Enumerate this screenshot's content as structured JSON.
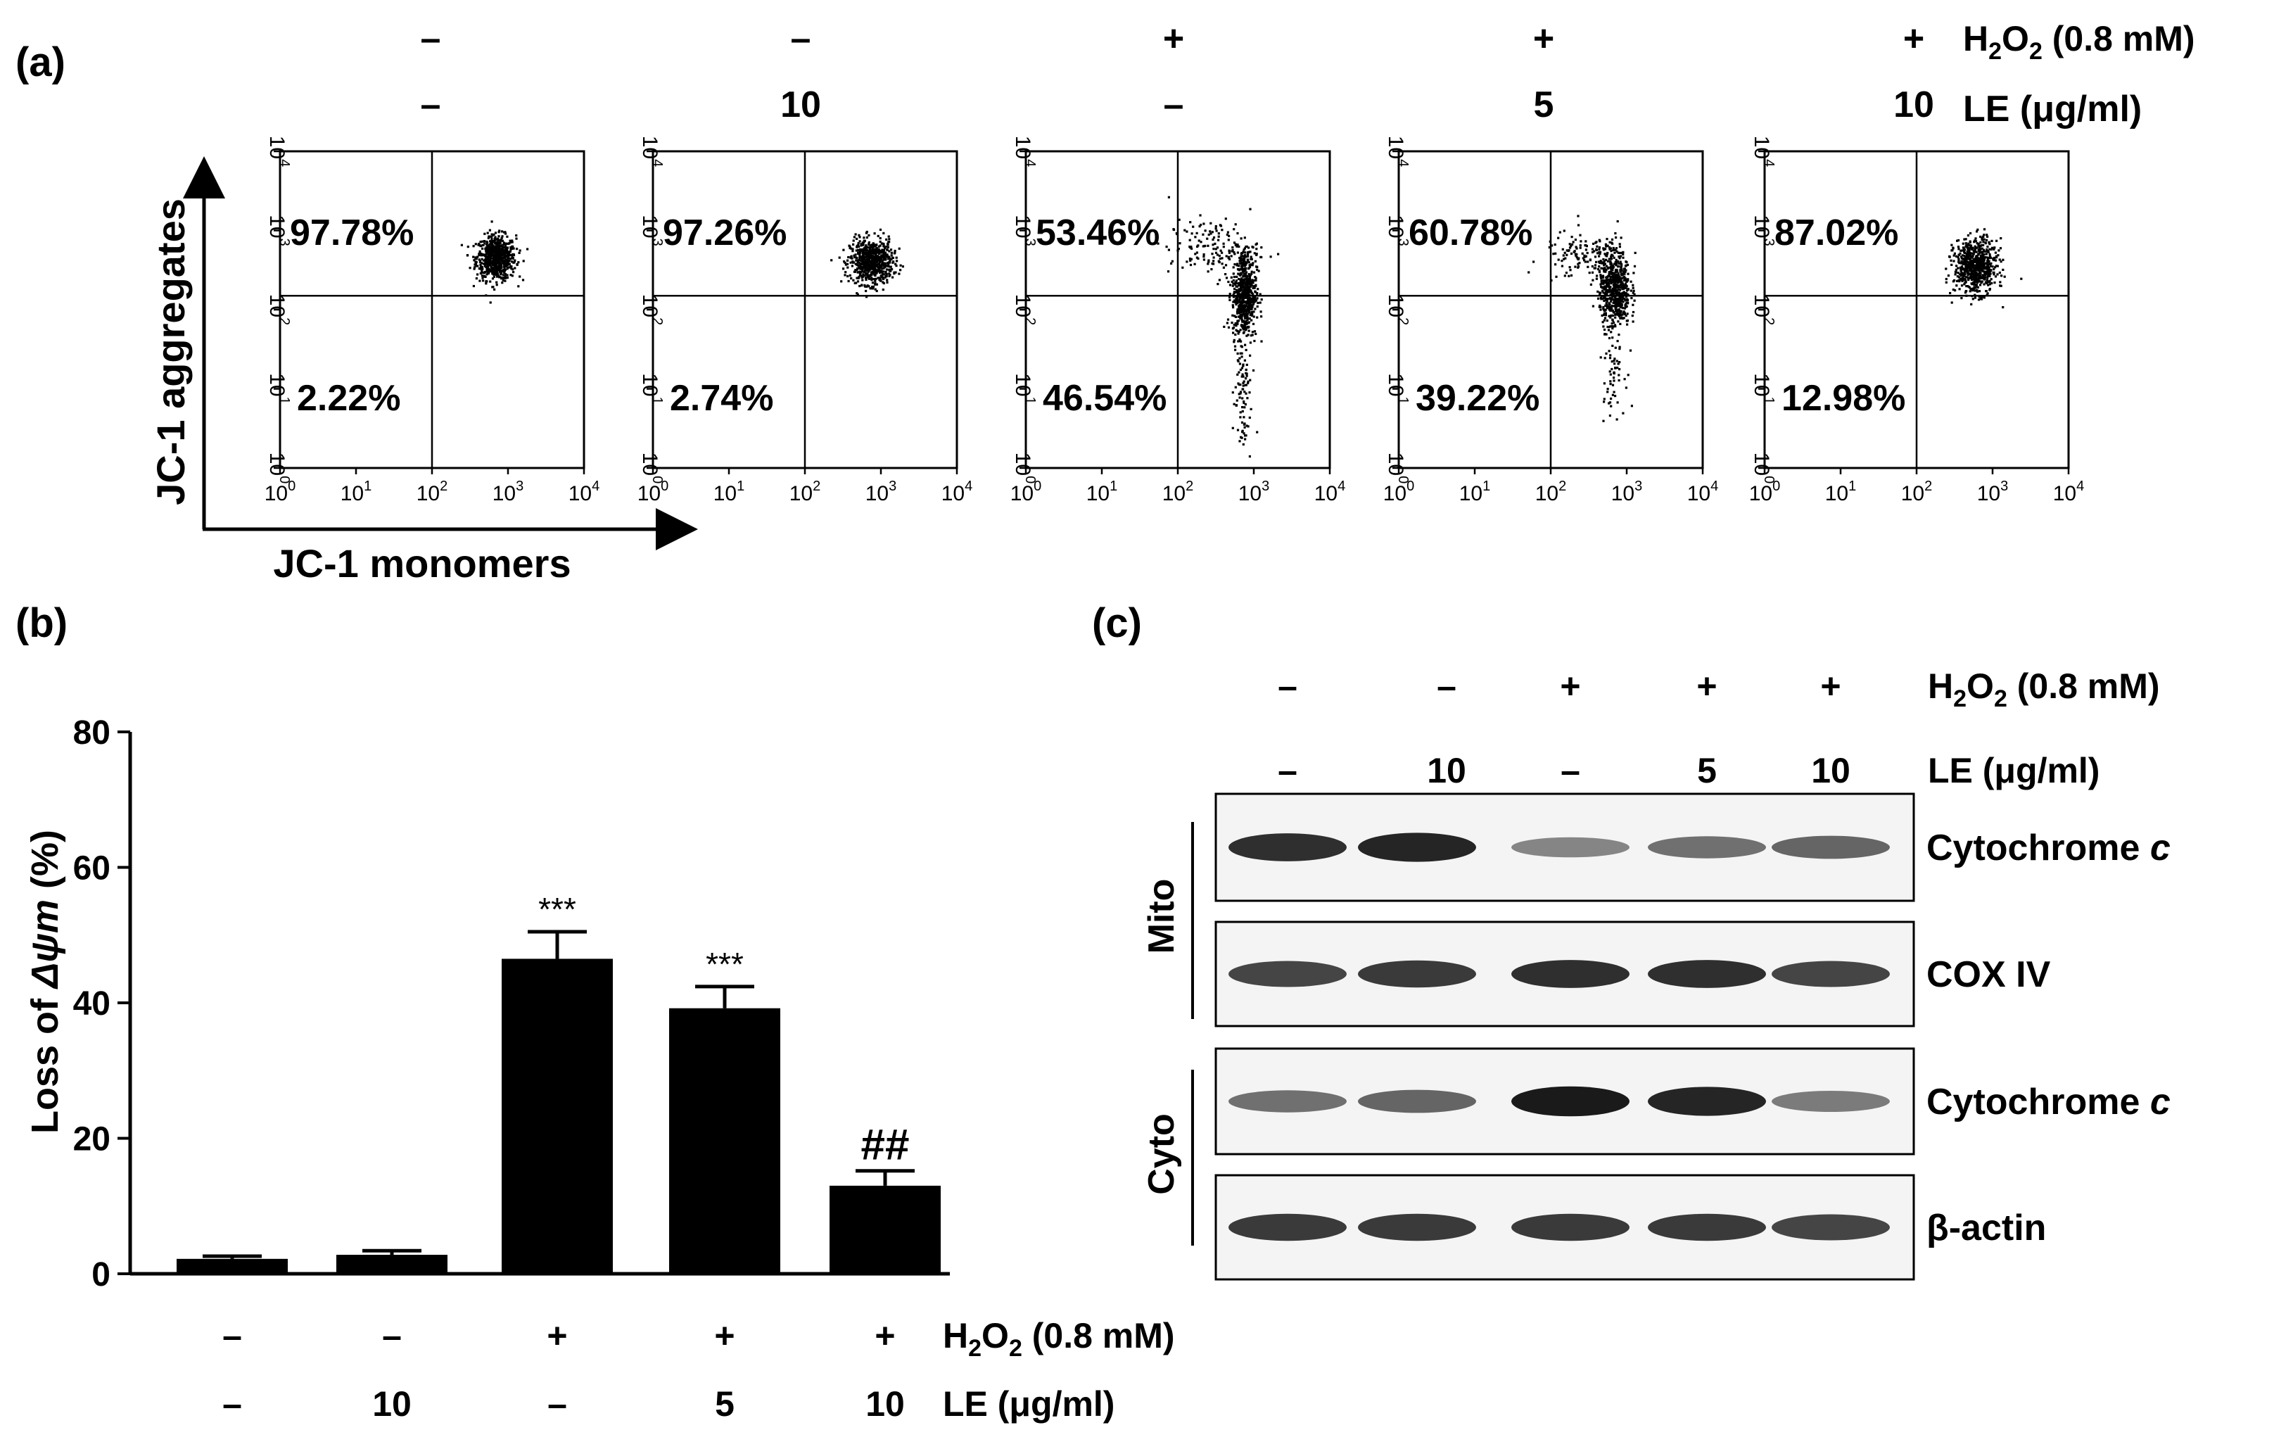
{
  "panel_a": {
    "label": "(a)",
    "y_axis_label": "JC-1 aggregates",
    "x_axis_label": "JC-1 monomers",
    "h2o2_label": "H2O2 (0.8 mM)",
    "le_label": "LE (μg/ml)",
    "conditions": [
      {
        "h2o2": "–",
        "le": "–"
      },
      {
        "h2o2": "–",
        "le": "10"
      },
      {
        "h2o2": "+",
        "le": "–"
      },
      {
        "h2o2": "+",
        "le": "5"
      },
      {
        "h2o2": "+",
        "le": "10"
      }
    ],
    "tick_labels": [
      "10^0",
      "10^1",
      "10^2",
      "10^3",
      "10^4"
    ]
  },
  "panel_b": {
    "label": "(b)",
    "h2o2_label": "H2O2 (0.8 mM)",
    "le_label": "LE (μg/ml)",
    "conditions": [
      {
        "h2o2": "–",
        "le": "–"
      },
      {
        "h2o2": "–",
        "le": "10"
      },
      {
        "h2o2": "+",
        "le": "–"
      },
      {
        "h2o2": "+",
        "le": "5"
      },
      {
        "h2o2": "+",
        "le": "10"
      }
    ]
  },
  "panel_c": {
    "label": "(c)",
    "h2o2_label": "H2O2 (0.8 mM)",
    "le_label": "LE (μg/ml)",
    "conditions": [
      {
        "h2o2": "–",
        "le": "–"
      },
      {
        "h2o2": "–",
        "le": "10"
      },
      {
        "h2o2": "+",
        "le": "–"
      },
      {
        "h2o2": "+",
        "le": "5"
      },
      {
        "h2o2": "+",
        "le": "10"
      }
    ],
    "groups": [
      {
        "name": "Mito",
        "blots": [
          0,
          1
        ]
      },
      {
        "name": "Cyto",
        "blots": [
          2,
          3
        ]
      }
    ],
    "blots": [
      {
        "name": "Cytochrome c",
        "intensity": [
          0.85,
          0.9,
          0.45,
          0.55,
          0.6
        ]
      },
      {
        "name": "COX IV",
        "intensity": [
          0.75,
          0.8,
          0.85,
          0.85,
          0.75
        ]
      },
      {
        "name": "Cytochrome c",
        "intensity": [
          0.55,
          0.6,
          0.95,
          0.9,
          0.5
        ]
      },
      {
        "name": "β-actin",
        "intensity": [
          0.8,
          0.8,
          0.8,
          0.8,
          0.75
        ]
      }
    ]
  },
  "chart_data": [
    {
      "type": "scatter",
      "panel": "(a)",
      "xlabel": "JC-1 monomers",
      "ylabel": "JC-1 aggregates",
      "xscale": "log",
      "yscale": "log",
      "xlim": [
        1,
        10000
      ],
      "ylim": [
        1,
        10000
      ],
      "quadrant_x": 100,
      "quadrant_y": 150,
      "plots": [
        {
          "upper_left": "97.78%",
          "lower_left": "2.22%",
          "clusters": [
            {
              "x": 700,
              "y": 450,
              "n": 700,
              "sx": 0.13,
              "sy": 0.14
            }
          ]
        },
        {
          "upper_left": "97.26%",
          "lower_left": "2.74%",
          "clusters": [
            {
              "x": 750,
              "y": 400,
              "n": 700,
              "sx": 0.14,
              "sy": 0.14
            }
          ]
        },
        {
          "upper_left": "53.46%",
          "lower_left": "46.54%",
          "clusters": [
            {
              "x": 750,
              "y": 160,
              "n": 600,
              "sx": 0.08,
              "sy": 0.28
            },
            {
              "x": 300,
              "y": 600,
              "n": 150,
              "sx": 0.3,
              "sy": 0.18
            },
            {
              "x": 700,
              "y": 8,
              "n": 90,
              "sx": 0.06,
              "sy": 0.45
            }
          ]
        },
        {
          "upper_left": "60.78%",
          "lower_left": "39.22%",
          "clusters": [
            {
              "x": 700,
              "y": 180,
              "n": 600,
              "sx": 0.1,
              "sy": 0.24
            },
            {
              "x": 300,
              "y": 450,
              "n": 150,
              "sx": 0.28,
              "sy": 0.16
            },
            {
              "x": 650,
              "y": 20,
              "n": 60,
              "sx": 0.08,
              "sy": 0.3
            }
          ]
        },
        {
          "upper_left": "87.02%",
          "lower_left": "12.98%",
          "clusters": [
            {
              "x": 600,
              "y": 350,
              "n": 700,
              "sx": 0.14,
              "sy": 0.17
            }
          ]
        }
      ]
    },
    {
      "type": "bar",
      "panel": "(b)",
      "categories": [
        "1",
        "2",
        "3",
        "4",
        "5"
      ],
      "values": [
        2.2,
        2.8,
        46.5,
        39.2,
        13.0
      ],
      "errors": [
        0.4,
        0.6,
        4.0,
        3.2,
        2.2
      ],
      "annotations": [
        "",
        "",
        "***",
        "***",
        "##"
      ],
      "ylabel": "Loss of Δψm (%)",
      "ylim": [
        0,
        80
      ],
      "yticks": [
        0,
        20,
        40,
        60,
        80
      ]
    }
  ]
}
